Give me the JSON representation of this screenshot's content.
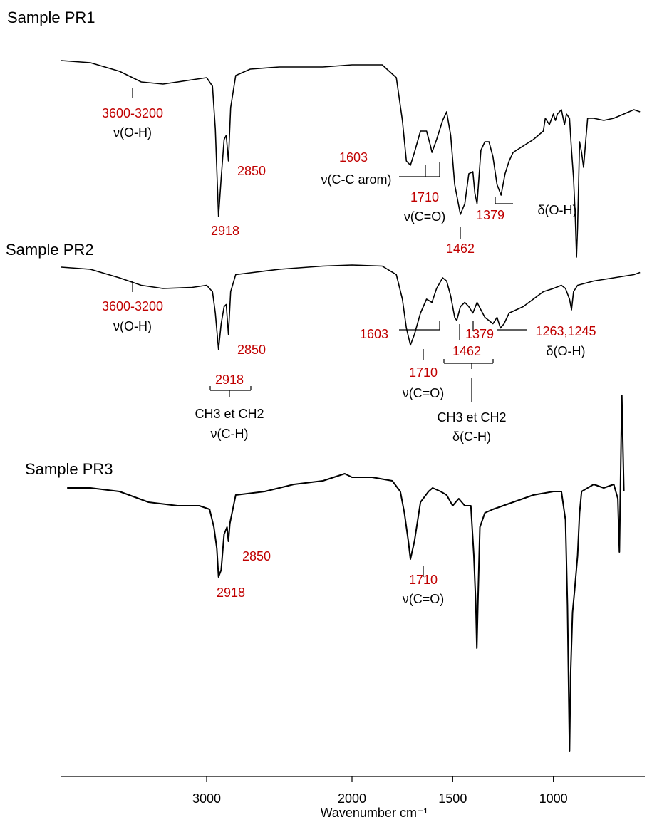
{
  "chart_data": [
    {
      "type": "line",
      "title": "Sample PR1",
      "color": "#000000",
      "ylim": [
        0,
        100
      ],
      "x": [
        4000,
        3800,
        3600,
        3450,
        3300,
        3100,
        3000,
        2960,
        2940,
        2918,
        2900,
        2880,
        2865,
        2850,
        2835,
        2800,
        2700,
        2500,
        2200,
        2000,
        1850,
        1780,
        1750,
        1730,
        1710,
        1690,
        1660,
        1630,
        1610,
        1603,
        1580,
        1550,
        1530,
        1510,
        1490,
        1462,
        1440,
        1420,
        1400,
        1390,
        1379,
        1360,
        1340,
        1320,
        1300,
        1280,
        1260,
        1240,
        1220,
        1200,
        1150,
        1100,
        1050,
        1040,
        1020,
        1000,
        990,
        980,
        960,
        945,
        935,
        920,
        910,
        900,
        892,
        885,
        880,
        870,
        860,
        850,
        840,
        830,
        800,
        750,
        700,
        650,
        600,
        570
      ],
      "values": [
        95,
        94,
        90,
        85,
        84,
        86,
        87,
        83,
        63,
        22,
        40,
        58,
        60,
        48,
        73,
        88,
        91,
        92,
        92,
        93,
        93,
        87,
        67,
        48,
        46,
        52,
        62,
        62,
        55,
        52,
        58,
        67,
        71,
        60,
        37,
        23,
        28,
        42,
        43,
        33,
        28,
        53,
        57,
        57,
        50,
        37,
        32,
        42,
        48,
        52,
        55,
        58,
        62,
        68,
        65,
        70,
        67,
        70,
        72,
        65,
        70,
        68,
        53,
        40,
        23,
        3,
        17,
        57,
        52,
        45,
        57,
        68,
        68,
        67,
        68,
        70,
        72,
        71
      ],
      "annotations": [
        "3600-3200",
        "ν(O-H)",
        "2850",
        "2918",
        "1603",
        "ν(C-C arom)",
        "1710",
        "ν(C=O)",
        "1462",
        "1379",
        "δ(O-H)"
      ]
    },
    {
      "type": "line",
      "title": "Sample PR2",
      "color": "#000000",
      "ylim": [
        0,
        100
      ],
      "x": [
        4000,
        3800,
        3600,
        3450,
        3300,
        3100,
        3000,
        2960,
        2940,
        2918,
        2900,
        2880,
        2865,
        2850,
        2835,
        2800,
        2500,
        2200,
        2000,
        1850,
        1780,
        1750,
        1730,
        1710,
        1690,
        1660,
        1630,
        1603,
        1580,
        1550,
        1530,
        1510,
        1490,
        1480,
        1462,
        1440,
        1420,
        1400,
        1379,
        1360,
        1340,
        1320,
        1300,
        1280,
        1263,
        1245,
        1220,
        1150,
        1100,
        1050,
        1000,
        960,
        940,
        920,
        910,
        900,
        880,
        800,
        700,
        600,
        570
      ],
      "values": [
        90,
        88,
        80,
        73,
        70,
        71,
        73,
        67,
        47,
        13,
        37,
        53,
        55,
        27,
        67,
        83,
        88,
        91,
        92,
        91,
        83,
        60,
        33,
        17,
        27,
        47,
        60,
        57,
        70,
        80,
        77,
        63,
        43,
        40,
        53,
        57,
        53,
        47,
        57,
        50,
        43,
        40,
        37,
        43,
        33,
        37,
        47,
        53,
        60,
        67,
        70,
        73,
        70,
        60,
        50,
        67,
        73,
        77,
        80,
        83,
        85
      ],
      "annotations": [
        "3600-3200",
        "ν(O-H)",
        "2850",
        "2918",
        "CH3 et CH2",
        "ν(C-H)",
        "1603",
        "1710",
        "ν(C=O)",
        "1462",
        "1379",
        "1263,1245",
        "δ(O-H)",
        "CH3 et CH2",
        "δ(C-H)"
      ]
    },
    {
      "type": "line",
      "title": "Sample PR3",
      "color": "#000000",
      "ylim": [
        -5,
        100
      ],
      "x": [
        3960,
        3800,
        3600,
        3400,
        3200,
        3050,
        2980,
        2950,
        2930,
        2918,
        2900,
        2880,
        2860,
        2850,
        2840,
        2800,
        2600,
        2400,
        2200,
        2050,
        2000,
        1900,
        1800,
        1760,
        1740,
        1720,
        1710,
        1690,
        1660,
        1620,
        1600,
        1560,
        1530,
        1500,
        1470,
        1440,
        1410,
        1395,
        1385,
        1380,
        1375,
        1365,
        1340,
        1300,
        1200,
        1100,
        1000,
        960,
        940,
        930,
        920,
        915,
        905,
        895,
        880,
        870,
        860,
        800,
        750,
        700,
        680,
        672,
        660,
        650
      ],
      "values": [
        73,
        73,
        72,
        69,
        68,
        68,
        67,
        62,
        56,
        48,
        50,
        60,
        62,
        58,
        63,
        71,
        72,
        74,
        75,
        77,
        76,
        76,
        75,
        72,
        66,
        58,
        53,
        58,
        69,
        72,
        73,
        72,
        71,
        68,
        70,
        68,
        68,
        54,
        40,
        28,
        40,
        62,
        66,
        67,
        69,
        71,
        72,
        72,
        64,
        40,
        -1,
        20,
        38,
        44,
        54,
        66,
        72,
        74,
        73,
        74,
        70,
        55,
        99,
        72
      ],
      "annotations": [
        "2850",
        "2918",
        "1710",
        "ν(C=O)"
      ]
    }
  ],
  "x_axis": {
    "label": "Wavenumber cm⁻¹",
    "xlim": [
      4000,
      560
    ],
    "xticks": [
      3000,
      2000,
      1500,
      1000
    ],
    "scale_break": 2000
  }
}
